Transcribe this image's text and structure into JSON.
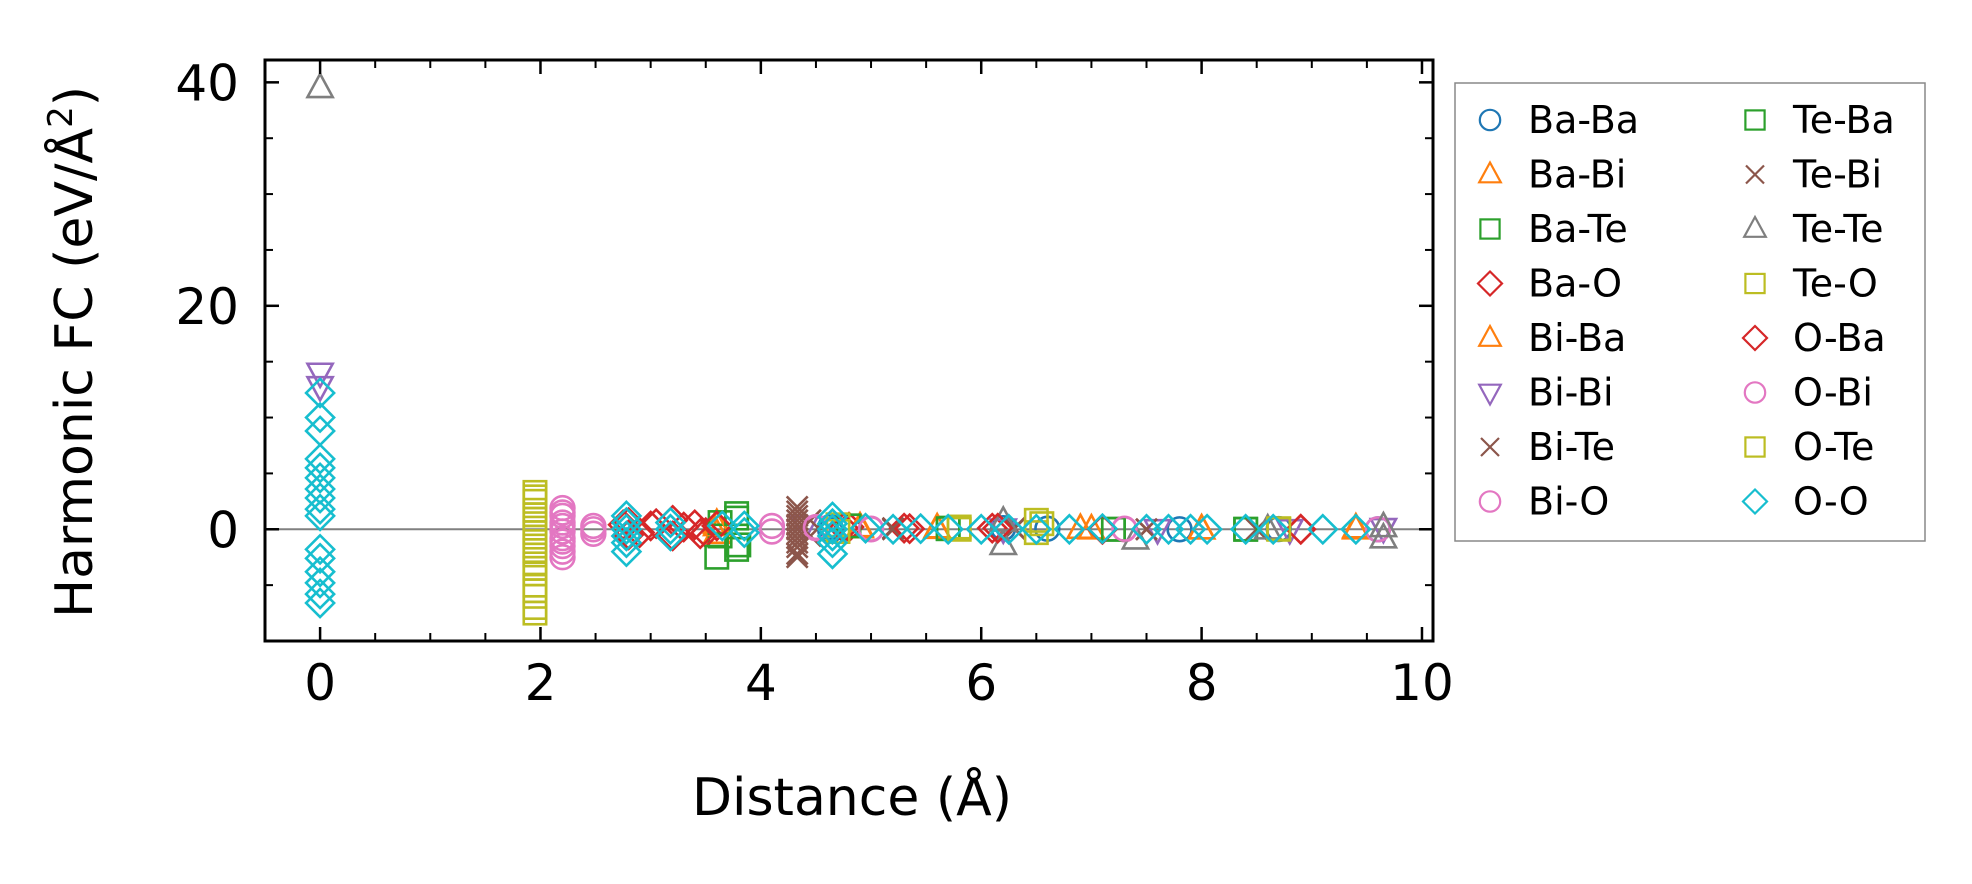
{
  "chart_data": {
    "type": "scatter",
    "xlabel": "Distance (Å)",
    "ylabel_prefix": "Harmonic FC (eV/Å",
    "ylabel_superscript": "2",
    "ylabel_suffix": ")",
    "xlim": [
      -0.5,
      10.1
    ],
    "ylim": [
      -10,
      42
    ],
    "xticks": [
      0,
      2,
      4,
      6,
      8,
      10
    ],
    "xtick_labels": [
      "0",
      "2",
      "4",
      "6",
      "8",
      "10"
    ],
    "yticks": [
      0,
      20,
      40
    ],
    "ytick_labels": [
      "0",
      "20",
      "40"
    ],
    "zero_line": true,
    "grid": false,
    "legend_position": "outside-right",
    "series": [
      {
        "name": "Ba-Ba",
        "marker": "circle",
        "color": "#1f77b4",
        "points": [
          [
            4.63,
            0.2
          ],
          [
            4.63,
            -0.1
          ],
          [
            6.2,
            0.1
          ],
          [
            6.6,
            0.05
          ],
          [
            7.8,
            0.0
          ],
          [
            8.7,
            0.02
          ],
          [
            9.6,
            0.0
          ]
        ]
      },
      {
        "name": "Ba-Bi",
        "marker": "triangle-up",
        "color": "#ff7f0e",
        "points": [
          [
            3.6,
            0.5
          ],
          [
            3.6,
            -0.4
          ],
          [
            4.9,
            0.2
          ],
          [
            5.6,
            0.1
          ],
          [
            6.9,
            0.05
          ],
          [
            8.0,
            0.0
          ],
          [
            9.4,
            0.0
          ]
        ]
      },
      {
        "name": "Ba-Te",
        "marker": "square",
        "color": "#2ca02c",
        "points": [
          [
            3.63,
            -0.6
          ],
          [
            3.78,
            1.0
          ],
          [
            3.78,
            -1.8
          ],
          [
            4.8,
            0.3
          ],
          [
            5.7,
            0.1
          ],
          [
            7.2,
            0.0
          ],
          [
            8.4,
            0.0
          ]
        ]
      },
      {
        "name": "Ba-O",
        "marker": "diamond",
        "color": "#d62728",
        "points": [
          [
            2.8,
            0.6
          ],
          [
            2.8,
            -0.5
          ],
          [
            3.0,
            0.3
          ],
          [
            3.2,
            0.8
          ],
          [
            3.2,
            -0.6
          ],
          [
            3.4,
            0.4
          ],
          [
            3.5,
            -0.3
          ],
          [
            4.8,
            0.2
          ],
          [
            5.3,
            0.1
          ],
          [
            6.1,
            0.1
          ],
          [
            7.1,
            0.0
          ],
          [
            8.9,
            0.0
          ]
        ]
      },
      {
        "name": "Bi-Ba",
        "marker": "triangle-up",
        "color": "#ff7f0e",
        "points": [
          [
            3.6,
            0.3
          ],
          [
            4.9,
            0.1
          ],
          [
            5.6,
            0.05
          ],
          [
            7.0,
            0.0
          ],
          [
            8.0,
            0.0
          ],
          [
            9.4,
            0.1
          ]
        ]
      },
      {
        "name": "Bi-Bi",
        "marker": "triangle-down",
        "color": "#9467bd",
        "points": [
          [
            0.0,
            14.0
          ],
          [
            0.0,
            12.8
          ],
          [
            4.4,
            0.3
          ],
          [
            6.2,
            0.05
          ],
          [
            7.6,
            0.0
          ],
          [
            8.8,
            0.0
          ],
          [
            9.65,
            0.1
          ]
        ]
      },
      {
        "name": "Bi-Te",
        "marker": "x",
        "color": "#8c564b",
        "points": [
          [
            4.33,
            2.0
          ],
          [
            4.33,
            1.2
          ],
          [
            4.33,
            0.4
          ],
          [
            4.33,
            -0.4
          ],
          [
            4.33,
            -1.2
          ],
          [
            4.33,
            -2.2
          ],
          [
            4.45,
            0.8
          ],
          [
            4.45,
            -0.6
          ],
          [
            5.2,
            0.1
          ],
          [
            6.3,
            0.1
          ],
          [
            7.5,
            0.0
          ],
          [
            8.5,
            0.0
          ]
        ]
      },
      {
        "name": "Bi-O",
        "marker": "circle",
        "color": "#e377c2",
        "points": [
          [
            2.2,
            1.9
          ],
          [
            2.2,
            1.2
          ],
          [
            2.2,
            0.6
          ],
          [
            2.2,
            -0.2
          ],
          [
            2.2,
            -0.8
          ],
          [
            2.2,
            -1.5
          ],
          [
            2.2,
            -2.5
          ],
          [
            2.48,
            0.3
          ],
          [
            2.48,
            -0.4
          ],
          [
            4.1,
            0.3
          ],
          [
            4.5,
            0.1
          ],
          [
            5.0,
            0.05
          ],
          [
            7.3,
            0.0
          ],
          [
            9.6,
            0.0
          ]
        ]
      },
      {
        "name": "Te-Ba",
        "marker": "square",
        "color": "#2ca02c",
        "points": [
          [
            3.6,
            -2.5
          ],
          [
            3.63,
            0.6
          ],
          [
            3.78,
            1.4
          ],
          [
            3.8,
            -1.4
          ],
          [
            4.8,
            0.3
          ],
          [
            5.7,
            0.05
          ],
          [
            7.2,
            0.0
          ],
          [
            8.4,
            0.0
          ]
        ]
      },
      {
        "name": "Te-Bi",
        "marker": "x",
        "color": "#8c564b",
        "points": [
          [
            4.33,
            1.6
          ],
          [
            4.33,
            0.8
          ],
          [
            4.33,
            0.0
          ],
          [
            4.33,
            -0.8
          ],
          [
            4.33,
            -1.6
          ],
          [
            4.33,
            -2.5
          ],
          [
            5.2,
            0.0
          ],
          [
            6.3,
            0.05
          ],
          [
            7.5,
            0.0
          ]
        ]
      },
      {
        "name": "Te-Te",
        "marker": "triangle-up",
        "color": "#7f7f7f",
        "points": [
          [
            0.0,
            39.5
          ],
          [
            6.2,
            0.7
          ],
          [
            6.2,
            -1.4
          ],
          [
            7.4,
            -0.9
          ],
          [
            8.6,
            0.0
          ],
          [
            9.65,
            -0.8
          ],
          [
            9.65,
            0.2
          ]
        ]
      },
      {
        "name": "Te-O",
        "marker": "square",
        "color": "#bcbd22",
        "points": [
          [
            1.95,
            3.3
          ],
          [
            1.95,
            2.5
          ],
          [
            1.95,
            1.7
          ],
          [
            1.95,
            0.9
          ],
          [
            1.95,
            0.1
          ],
          [
            1.95,
            -0.7
          ],
          [
            1.95,
            -1.5
          ],
          [
            1.95,
            -2.3
          ],
          [
            1.95,
            -3.1
          ],
          [
            1.95,
            -4.0
          ],
          [
            1.95,
            -5.0
          ],
          [
            1.95,
            -6.0
          ],
          [
            1.95,
            -7.5
          ],
          [
            4.7,
            0.4
          ],
          [
            5.8,
            0.2
          ],
          [
            6.5,
            0.8
          ],
          [
            6.5,
            -0.3
          ],
          [
            8.7,
            0.0
          ]
        ]
      },
      {
        "name": "O-Ba",
        "marker": "diamond",
        "color": "#d62728",
        "points": [
          [
            2.75,
            0.4
          ],
          [
            2.9,
            -0.3
          ],
          [
            3.05,
            0.5
          ],
          [
            3.3,
            0.2
          ],
          [
            3.45,
            -0.4
          ],
          [
            3.6,
            0.3
          ],
          [
            4.75,
            0.1
          ],
          [
            5.35,
            0.05
          ],
          [
            6.15,
            0.1
          ],
          [
            7.1,
            0.0
          ],
          [
            8.9,
            0.0
          ]
        ]
      },
      {
        "name": "O-Bi",
        "marker": "circle",
        "color": "#e377c2",
        "points": [
          [
            2.2,
            1.5
          ],
          [
            2.2,
            0.3
          ],
          [
            2.2,
            -1.1
          ],
          [
            2.2,
            -2.0
          ],
          [
            2.48,
            0.0
          ],
          [
            4.1,
            -0.2
          ],
          [
            4.5,
            0.2
          ],
          [
            5.0,
            0.0
          ],
          [
            7.3,
            0.05
          ]
        ]
      },
      {
        "name": "O-Te",
        "marker": "square",
        "color": "#bcbd22",
        "points": [
          [
            1.95,
            2.9
          ],
          [
            1.95,
            1.3
          ],
          [
            1.95,
            -0.3
          ],
          [
            1.95,
            -1.9
          ],
          [
            1.95,
            -3.5
          ],
          [
            1.95,
            -5.5
          ],
          [
            1.95,
            -7.0
          ],
          [
            4.7,
            -0.2
          ],
          [
            5.8,
            0.0
          ],
          [
            6.55,
            0.5
          ],
          [
            8.7,
            0.05
          ]
        ]
      },
      {
        "name": "O-O",
        "marker": "diamond",
        "color": "#17becf",
        "points": [
          [
            0.0,
            12.2
          ],
          [
            0.0,
            10.0
          ],
          [
            0.0,
            8.8
          ],
          [
            0.0,
            6.3
          ],
          [
            0.0,
            5.5
          ],
          [
            0.0,
            4.6
          ],
          [
            0.0,
            3.6
          ],
          [
            0.0,
            2.8
          ],
          [
            0.0,
            1.8
          ],
          [
            0.0,
            1.2
          ],
          [
            0.0,
            -1.8
          ],
          [
            0.0,
            -2.6
          ],
          [
            0.0,
            -3.8
          ],
          [
            0.0,
            -4.8
          ],
          [
            0.0,
            -5.8
          ],
          [
            0.0,
            -6.6
          ],
          [
            2.78,
            1.2
          ],
          [
            2.78,
            0.6
          ],
          [
            2.78,
            0.0
          ],
          [
            2.78,
            -0.6
          ],
          [
            2.78,
            -1.2
          ],
          [
            2.78,
            -2.0
          ],
          [
            3.18,
            0.6
          ],
          [
            3.18,
            0.0
          ],
          [
            3.18,
            -0.6
          ],
          [
            3.65,
            0.3
          ],
          [
            3.85,
            0.3
          ],
          [
            3.85,
            -0.3
          ],
          [
            4.65,
            1.1
          ],
          [
            4.65,
            0.5
          ],
          [
            4.65,
            0.0
          ],
          [
            4.65,
            -0.6
          ],
          [
            4.65,
            -1.2
          ],
          [
            4.65,
            -2.2
          ],
          [
            4.95,
            0.1
          ],
          [
            5.2,
            0.0
          ],
          [
            5.45,
            0.05
          ],
          [
            5.7,
            0.0
          ],
          [
            6.0,
            0.0
          ],
          [
            6.25,
            0.0
          ],
          [
            6.5,
            0.0
          ],
          [
            6.8,
            0.0
          ],
          [
            7.1,
            0.05
          ],
          [
            7.5,
            0.0
          ],
          [
            7.7,
            0.0
          ],
          [
            7.9,
            0.0
          ],
          [
            8.05,
            0.0
          ],
          [
            8.4,
            0.0
          ],
          [
            8.65,
            0.0
          ],
          [
            9.1,
            0.0
          ],
          [
            9.4,
            0.0
          ]
        ]
      }
    ]
  }
}
